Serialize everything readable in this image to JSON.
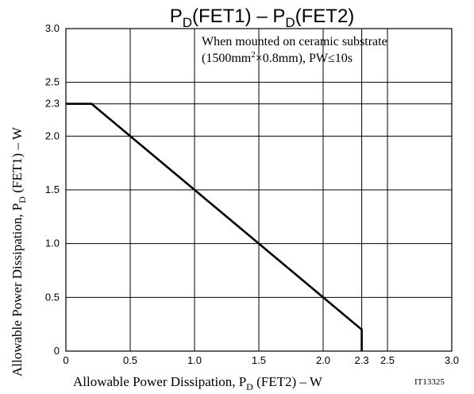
{
  "chart_data": {
    "type": "line",
    "title": {
      "p": "P",
      "sub": "D",
      "text1": "(FET1) – ",
      "text2": "(FET2)"
    },
    "xlabel": {
      "pre": "Allowable Power Dissipation, P",
      "sub": "D",
      "post": " (FET2) – W"
    },
    "ylabel": {
      "pre": "Allowable Power Dissipation, P",
      "sub": "D",
      "post": " (FET1) – W"
    },
    "xlim": [
      0,
      3.0
    ],
    "ylim": [
      0,
      3.0
    ],
    "x_ticks": [
      {
        "v": 0,
        "label": "0"
      },
      {
        "v": 0.5,
        "label": "0.5"
      },
      {
        "v": 1.0,
        "label": "1.0"
      },
      {
        "v": 1.5,
        "label": "1.5"
      },
      {
        "v": 2.0,
        "label": "2.0"
      },
      {
        "v": 2.3,
        "label": "2.3"
      },
      {
        "v": 2.5,
        "label": "2.5"
      },
      {
        "v": 3.0,
        "label": "3.0"
      }
    ],
    "y_ticks": [
      {
        "v": 0,
        "label": "0"
      },
      {
        "v": 0.5,
        "label": "0.5"
      },
      {
        "v": 1.0,
        "label": "1.0"
      },
      {
        "v": 1.5,
        "label": "1.5"
      },
      {
        "v": 2.0,
        "label": "2.0"
      },
      {
        "v": 2.3,
        "label": "2.3"
      },
      {
        "v": 2.5,
        "label": "2.5"
      },
      {
        "v": 3.0,
        "label": "3.0"
      }
    ],
    "grid": true,
    "series": [
      {
        "x": [
          0,
          0.2,
          2.3,
          2.3
        ],
        "y": [
          2.3,
          2.3,
          0.2,
          0
        ]
      }
    ],
    "annotation": {
      "line1": "When mounted on ceramic substrate",
      "line2_pre": "(1500mm",
      "line2_sup": "2",
      "line2_post": "×0.8mm), PW≤10s"
    },
    "code": "IT13325"
  }
}
